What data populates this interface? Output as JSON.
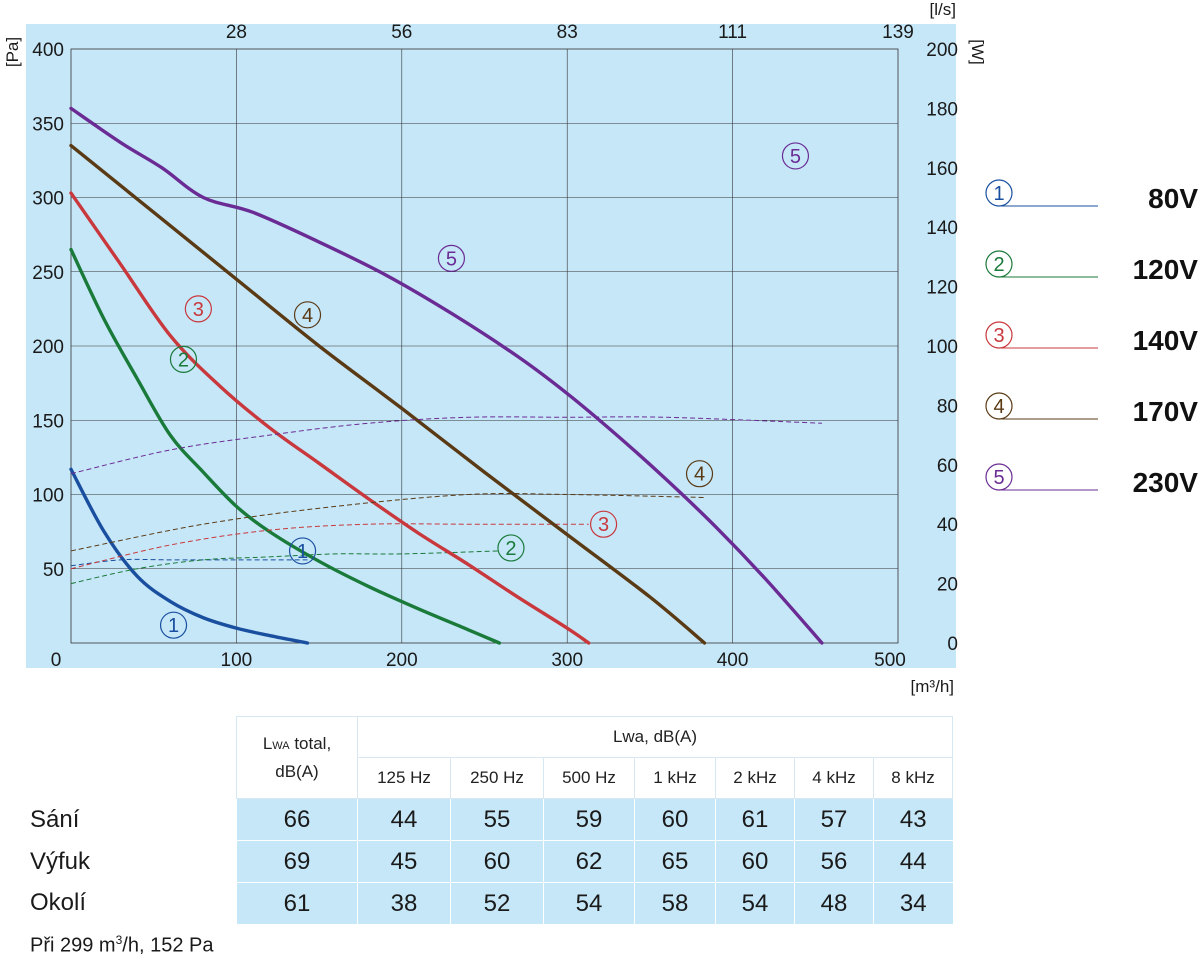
{
  "chart_data": {
    "type": "line",
    "x_axis": {
      "unit": "[m³/h]",
      "ticks": [
        0,
        100,
        200,
        300,
        400,
        500
      ],
      "range": [
        0,
        500
      ]
    },
    "x2_axis": {
      "unit": "[l/s]",
      "ticks": [
        "28",
        "56",
        "83",
        "111",
        "139"
      ]
    },
    "y_axis": {
      "unit": "[Pa]",
      "ticks": [
        50,
        100,
        150,
        200,
        250,
        300,
        350,
        400
      ],
      "range": [
        0,
        400
      ]
    },
    "y2_axis": {
      "unit": "[W]",
      "ticks": [
        0,
        20,
        40,
        60,
        80,
        100,
        120,
        140,
        160,
        180,
        200
      ],
      "range": [
        0,
        200
      ]
    },
    "grid": true,
    "background": "#c6e7f8",
    "series": [
      {
        "name": "80V",
        "marker": "1",
        "color": "#1a4fa0",
        "pressure": [
          [
            0,
            117
          ],
          [
            20,
            75
          ],
          [
            40,
            45
          ],
          [
            60,
            28
          ],
          [
            80,
            17
          ],
          [
            100,
            10
          ],
          [
            120,
            5
          ],
          [
            143,
            0
          ]
        ],
        "power": [
          [
            0,
            26
          ],
          [
            30,
            28
          ],
          [
            60,
            28
          ],
          [
            100,
            28
          ],
          [
            143,
            28
          ]
        ],
        "pressure_label_at": [
          62,
          12
        ],
        "power_label_at": [
          140,
          31
        ]
      },
      {
        "name": "120V",
        "marker": "2",
        "color": "#1a7a3a",
        "pressure": [
          [
            0,
            265
          ],
          [
            20,
            218
          ],
          [
            40,
            178
          ],
          [
            60,
            140
          ],
          [
            80,
            115
          ],
          [
            100,
            92
          ],
          [
            120,
            75
          ],
          [
            150,
            55
          ],
          [
            180,
            38
          ],
          [
            210,
            23
          ],
          [
            240,
            9
          ],
          [
            259,
            0
          ]
        ],
        "power": [
          [
            0,
            20
          ],
          [
            40,
            25
          ],
          [
            80,
            28
          ],
          [
            120,
            29
          ],
          [
            160,
            30
          ],
          [
            200,
            30
          ],
          [
            259,
            31
          ]
        ],
        "pressure_label_at": [
          68,
          191
        ],
        "power_label_at": [
          266,
          32
        ]
      },
      {
        "name": "140V",
        "marker": "3",
        "color": "#c8383c",
        "pressure": [
          [
            0,
            303
          ],
          [
            30,
            255
          ],
          [
            60,
            207
          ],
          [
            90,
            173
          ],
          [
            120,
            145
          ],
          [
            150,
            121
          ],
          [
            180,
            97
          ],
          [
            210,
            74
          ],
          [
            240,
            53
          ],
          [
            270,
            31
          ],
          [
            300,
            10
          ],
          [
            313,
            0
          ]
        ],
        "power": [
          [
            0,
            25
          ],
          [
            60,
            33
          ],
          [
            120,
            38
          ],
          [
            180,
            40
          ],
          [
            240,
            40
          ],
          [
            313,
            40
          ]
        ],
        "pressure_label_at": [
          77,
          225
        ],
        "power_label_at": [
          322,
          40
        ]
      },
      {
        "name": "170V",
        "marker": "4",
        "color": "#5a3a14",
        "pressure": [
          [
            0,
            335
          ],
          [
            50,
            290
          ],
          [
            100,
            245
          ],
          [
            150,
            200
          ],
          [
            200,
            158
          ],
          [
            250,
            115
          ],
          [
            300,
            73
          ],
          [
            350,
            31
          ],
          [
            383,
            0
          ]
        ],
        "power": [
          [
            0,
            31
          ],
          [
            80,
            40
          ],
          [
            160,
            46
          ],
          [
            240,
            50
          ],
          [
            300,
            50
          ],
          [
            383,
            49
          ]
        ],
        "pressure_label_at": [
          143,
          221
        ],
        "power_label_at": [
          380,
          57
        ]
      },
      {
        "name": "230V",
        "marker": "5",
        "color": "#6a2c94",
        "pressure": [
          [
            0,
            360
          ],
          [
            30,
            337
          ],
          [
            55,
            320
          ],
          [
            80,
            300
          ],
          [
            110,
            290
          ],
          [
            150,
            270
          ],
          [
            190,
            248
          ],
          [
            230,
            222
          ],
          [
            270,
            193
          ],
          [
            300,
            168
          ],
          [
            330,
            140
          ],
          [
            360,
            110
          ],
          [
            390,
            78
          ],
          [
            420,
            43
          ],
          [
            454,
            0
          ]
        ],
        "power": [
          [
            0,
            57
          ],
          [
            60,
            65
          ],
          [
            120,
            70
          ],
          [
            180,
            74
          ],
          [
            240,
            76
          ],
          [
            300,
            76
          ],
          [
            360,
            76
          ],
          [
            454,
            74
          ]
        ],
        "pressure_label_at": [
          230,
          259
        ],
        "power_label_at": [
          438,
          164
        ]
      }
    ]
  },
  "legend": [
    {
      "marker": "1",
      "label": "80V"
    },
    {
      "marker": "2",
      "label": "120V"
    },
    {
      "marker": "3",
      "label": "140V"
    },
    {
      "marker": "4",
      "label": "170V"
    },
    {
      "marker": "5",
      "label": "230V"
    }
  ],
  "noise_table": {
    "total_header_a": "L",
    "total_header_sub": "WA",
    "total_header_b": " total,",
    "total_header_c": "dB(A)",
    "group_header": "Lwa, dB(A)",
    "bands": [
      "125 Hz",
      "250 Hz",
      "500 Hz",
      "1 kHz",
      "2 kHz",
      "4 kHz",
      "8 kHz"
    ],
    "rows": [
      {
        "label": "Sání",
        "total": "66",
        "values": [
          "44",
          "55",
          "59",
          "60",
          "61",
          "57",
          "43"
        ]
      },
      {
        "label": "Výfuk",
        "total": "69",
        "values": [
          "45",
          "60",
          "62",
          "65",
          "60",
          "56",
          "44"
        ]
      },
      {
        "label": "Okolí",
        "total": "61",
        "values": [
          "38",
          "52",
          "54",
          "58",
          "54",
          "48",
          "34"
        ]
      }
    ],
    "note_a": "Při 299 m",
    "note_sup": "3",
    "note_b": "/h, 152 Pa"
  }
}
